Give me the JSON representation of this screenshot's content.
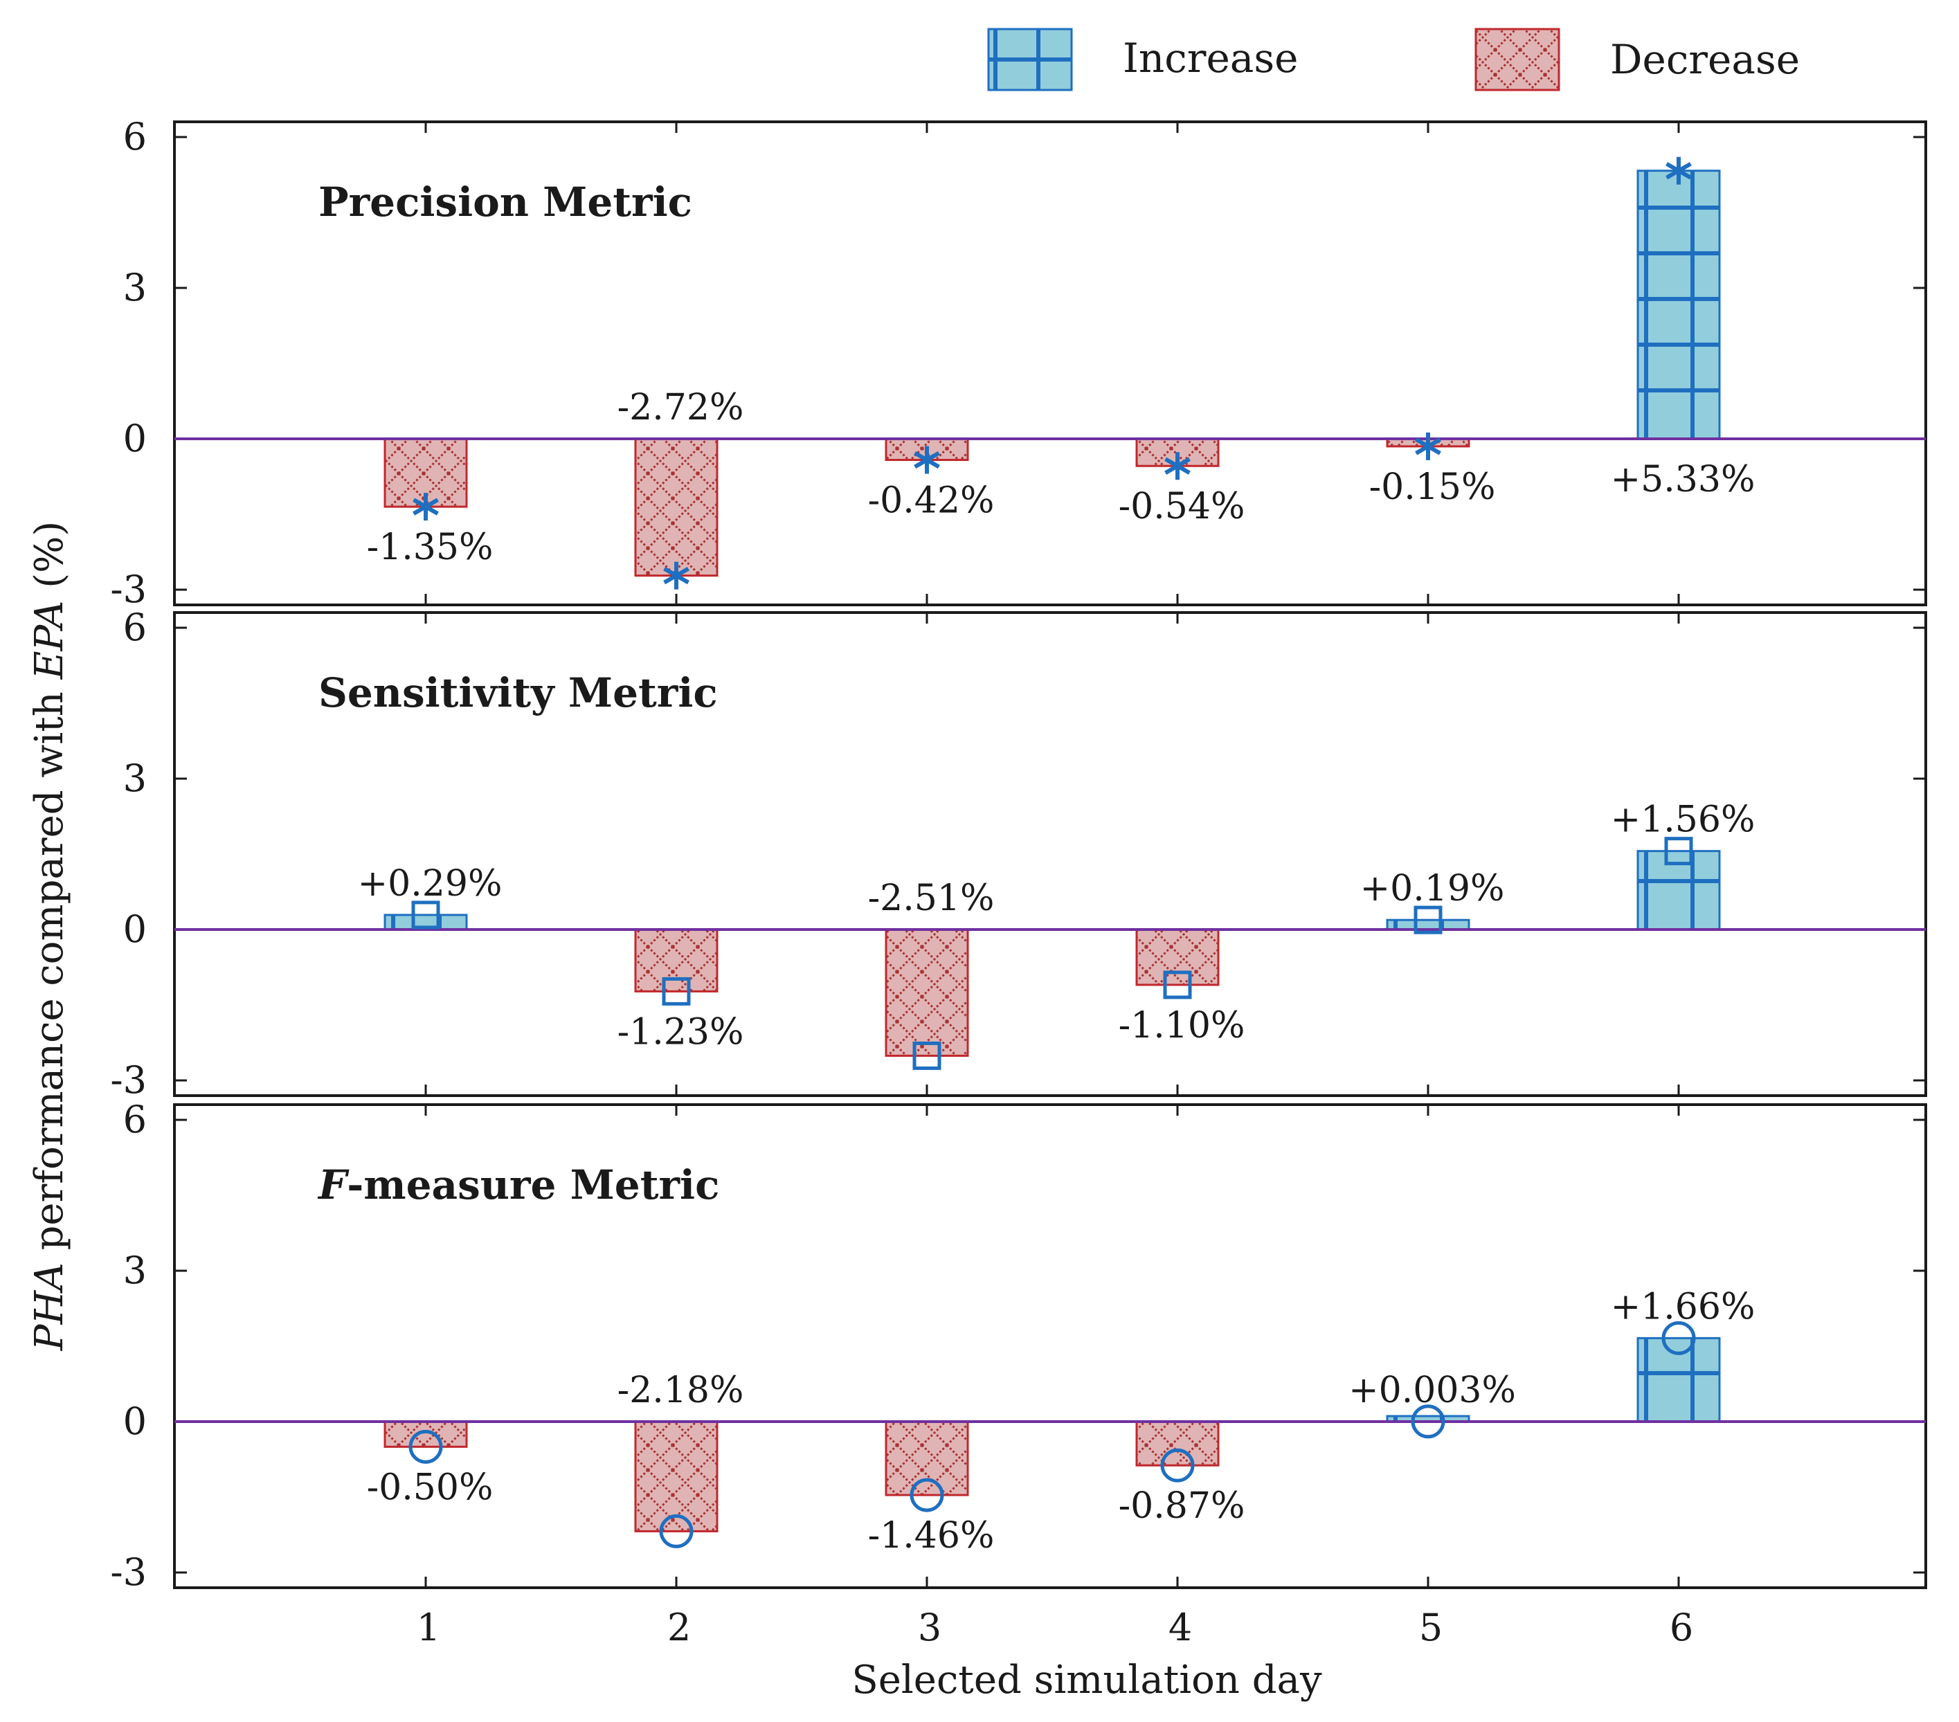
{
  "chart_data": {
    "type": "bar",
    "xlabel": "Selected simulation day",
    "ylabel_prefix": "PHA",
    "ylabel_middle": " performance compared with ",
    "ylabel_emph": "EPA",
    "ylabel_suffix": " (%)",
    "categories": [
      "1",
      "2",
      "3",
      "4",
      "5",
      "6"
    ],
    "ylim": [
      -3,
      6
    ],
    "yticks": [
      "6",
      "3",
      "0",
      "-3"
    ],
    "ytick_values": [
      6,
      3,
      0,
      -3
    ],
    "legend": [
      {
        "key": "increase",
        "label": "Increase",
        "fill": "#92cddc",
        "stroke": "#1f6fc0"
      },
      {
        "key": "decrease",
        "label": "Decrease",
        "fill": "#e0b4b4",
        "stroke": "#c0282c"
      }
    ],
    "colors": {
      "zero_line": "#7030a0",
      "marker": "#1f6fc0",
      "hatch_red": "#a83232",
      "axis": "#1a1a1a"
    },
    "panels": [
      {
        "key": "precision",
        "title": "Precision Metric",
        "title_emph": "",
        "marker": "asterisk",
        "values": [
          -1.35,
          -2.72,
          -0.42,
          -0.54,
          -0.15,
          5.33
        ],
        "labels": [
          "-1.35%",
          "-2.72%",
          "-0.42%",
          "-0.54%",
          "-0.15%",
          "+5.33%"
        ],
        "label_side": [
          "below",
          "above",
          "below",
          "below",
          "below",
          "below"
        ]
      },
      {
        "key": "sensitivity",
        "title": "Sensitivity Metric",
        "title_emph": "",
        "marker": "square",
        "values": [
          0.29,
          -1.23,
          -2.51,
          -1.1,
          0.19,
          1.56
        ],
        "labels": [
          "+0.29%",
          "-1.23%",
          "-2.51%",
          "-1.10%",
          "+0.19%",
          "+1.56%"
        ],
        "label_side": [
          "above",
          "below",
          "above",
          "below",
          "above",
          "above"
        ]
      },
      {
        "key": "fmeasure",
        "title": "-measure  Metric",
        "title_emph": "F",
        "marker": "circle",
        "values": [
          -0.5,
          -2.18,
          -1.46,
          -0.87,
          0.003,
          1.66
        ],
        "labels": [
          "-0.50%",
          "-2.18%",
          "-1.46%",
          "-0.87%",
          "+0.003%",
          "+1.66%"
        ],
        "label_side": [
          "below",
          "above",
          "below",
          "below",
          "above",
          "above"
        ]
      }
    ]
  }
}
